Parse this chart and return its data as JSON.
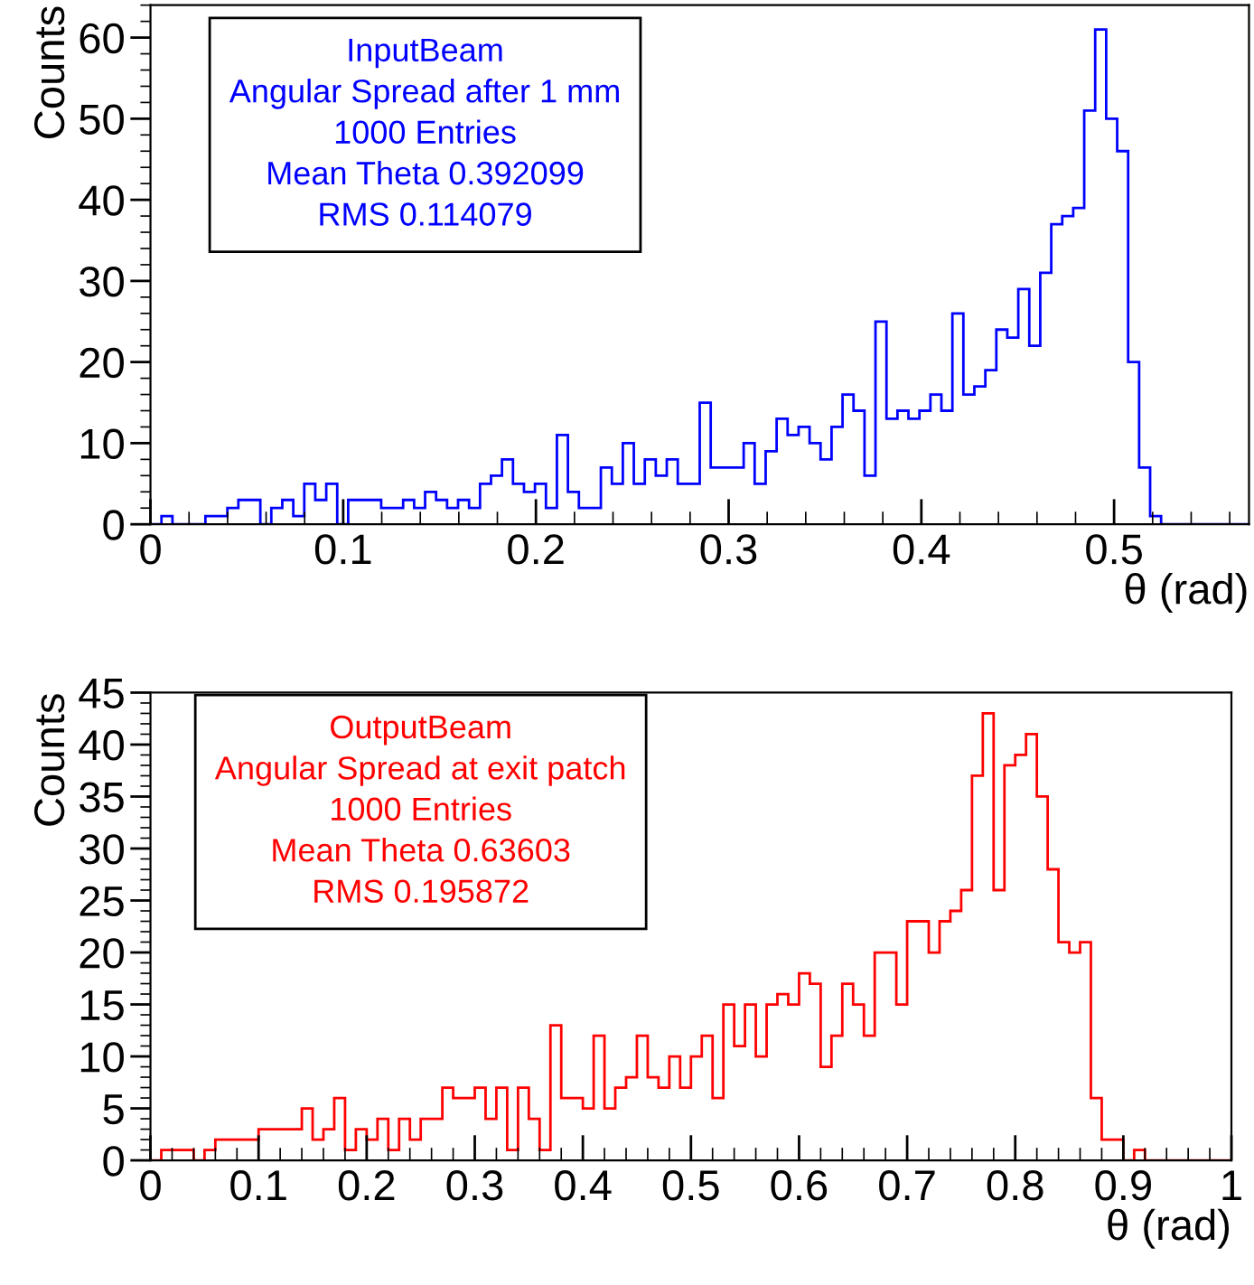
{
  "chart_data": [
    {
      "type": "histogram",
      "xlabel": "θ (rad)",
      "ylabel": "Counts",
      "color": "#0000ff",
      "annotations": [
        "InputBeam",
        "Angular Spread after 1 mm",
        "1000 Entries",
        "Mean Theta 0.392099",
        "RMS 0.114079"
      ],
      "bins": [
        0,
        0.0057,
        0.0114,
        0.0171,
        0.0228,
        0.0285,
        0.0342,
        0.0399,
        0.0456,
        0.0513,
        0.057,
        0.0627,
        0.0684,
        0.0741,
        0.0798,
        0.0855,
        0.0912,
        0.0969,
        0.1026,
        0.1083,
        0.114,
        0.1197,
        0.1254,
        0.1311,
        0.1368,
        0.1425,
        0.1482,
        0.1539,
        0.1596,
        0.1653,
        0.171,
        0.1767,
        0.1824,
        0.1881,
        0.1938,
        0.1995,
        0.2052,
        0.2109,
        0.2166,
        0.2223,
        0.228,
        0.2337,
        0.2394,
        0.2451,
        0.2508,
        0.2565,
        0.2622,
        0.2679,
        0.2736,
        0.2793,
        0.285,
        0.2907,
        0.2964,
        0.3021,
        0.3078,
        0.3135,
        0.3192,
        0.3249,
        0.3306,
        0.3363,
        0.342,
        0.3477,
        0.3534,
        0.3591,
        0.3648,
        0.3705,
        0.3762,
        0.3819,
        0.3876,
        0.3933,
        0.399,
        0.4047,
        0.4104,
        0.4161,
        0.4218,
        0.4275,
        0.4332,
        0.4389,
        0.4446,
        0.4503,
        0.456,
        0.4617,
        0.4674,
        0.4731,
        0.4788,
        0.4845,
        0.4902,
        0.4959,
        0.5016,
        0.5073,
        0.513,
        0.5187,
        0.5244,
        0.5301,
        0.5358,
        0.5415,
        0.5472,
        0.5529,
        0.5586,
        0.5643,
        0.57
      ],
      "values": [
        0,
        1,
        0,
        0,
        0,
        1,
        1,
        2,
        3,
        3,
        0,
        2,
        3,
        1,
        5,
        3,
        5,
        0,
        3,
        3,
        3,
        2,
        2,
        3,
        2,
        4,
        3,
        2,
        3,
        2,
        5,
        6,
        8,
        5,
        4,
        5,
        2,
        11,
        4,
        2,
        2,
        7,
        5,
        10,
        5,
        8,
        6,
        8,
        5,
        5,
        15,
        7,
        7,
        7,
        10,
        5,
        9,
        13,
        11,
        12,
        10,
        8,
        12,
        16,
        14,
        6,
        25,
        13,
        14,
        13,
        14,
        16,
        14,
        26,
        16,
        17,
        19,
        24,
        23,
        29,
        22,
        31,
        37,
        38,
        39,
        51,
        61,
        50,
        46,
        20,
        7,
        1,
        0,
        0,
        0,
        0,
        0,
        0,
        0,
        0
      ],
      "xlim": [
        0,
        0.57
      ],
      "xticks": [
        0,
        0.1,
        0.2,
        0.3,
        0.4,
        0.5
      ],
      "ylim": [
        0,
        64
      ],
      "yticks": [
        0,
        10,
        20,
        30,
        40,
        50,
        60
      ]
    },
    {
      "type": "histogram",
      "xlabel": "θ (rad)",
      "ylabel": "Counts",
      "color": "#ff0000",
      "annotations": [
        "OutputBeam",
        "Angular Spread at exit patch",
        "1000 Entries",
        "Mean Theta 0.63603",
        "RMS 0.195872"
      ],
      "bins": [
        0,
        0.01,
        0.02,
        0.03,
        0.04,
        0.05,
        0.06,
        0.07,
        0.08,
        0.09,
        0.1,
        0.11,
        0.12,
        0.13,
        0.14,
        0.15,
        0.16,
        0.17,
        0.18,
        0.19,
        0.2,
        0.21,
        0.22,
        0.23,
        0.24,
        0.25,
        0.26,
        0.27,
        0.28,
        0.29,
        0.3,
        0.31,
        0.32,
        0.33,
        0.34,
        0.35,
        0.36,
        0.37,
        0.38,
        0.39,
        0.4,
        0.41,
        0.42,
        0.43,
        0.44,
        0.45,
        0.46,
        0.47,
        0.48,
        0.49,
        0.5,
        0.51,
        0.52,
        0.53,
        0.54,
        0.55,
        0.56,
        0.57,
        0.58,
        0.59,
        0.6,
        0.61,
        0.62,
        0.63,
        0.64,
        0.65,
        0.66,
        0.67,
        0.68,
        0.69,
        0.7,
        0.71,
        0.72,
        0.73,
        0.74,
        0.75,
        0.76,
        0.77,
        0.78,
        0.79,
        0.8,
        0.81,
        0.82,
        0.83,
        0.84,
        0.85,
        0.86,
        0.87,
        0.88,
        0.89,
        0.9,
        0.91,
        0.92,
        0.93,
        0.94,
        0.95,
        0.96,
        0.97,
        0.98,
        0.99,
        1
      ],
      "values": [
        0,
        1,
        1,
        1,
        0,
        1,
        2,
        2,
        2,
        2,
        3,
        3,
        3,
        3,
        5,
        2,
        3,
        6,
        1,
        3,
        2,
        4,
        1,
        4,
        2,
        4,
        4,
        7,
        6,
        6,
        7,
        4,
        7,
        1,
        7,
        4,
        1,
        13,
        6,
        6,
        5,
        12,
        5,
        7,
        8,
        12,
        8,
        7,
        10,
        7,
        10,
        12,
        6,
        15,
        11,
        15,
        10,
        15,
        16,
        15,
        18,
        17,
        9,
        12,
        17,
        15,
        12,
        20,
        20,
        15,
        23,
        23,
        20,
        23,
        24,
        26,
        37,
        43,
        26,
        38,
        39,
        41,
        35,
        28,
        21,
        20,
        21,
        6,
        2,
        2,
        0,
        1,
        0,
        0,
        0,
        0,
        0,
        0,
        0,
        0
      ],
      "xlim": [
        0,
        1
      ],
      "xticks": [
        0,
        0.1,
        0.2,
        0.3,
        0.4,
        0.5,
        0.6,
        0.7,
        0.8,
        0.9,
        1
      ],
      "ylim": [
        0,
        45
      ],
      "yticks": [
        0,
        5,
        10,
        15,
        20,
        25,
        30,
        35,
        40,
        45
      ]
    }
  ]
}
